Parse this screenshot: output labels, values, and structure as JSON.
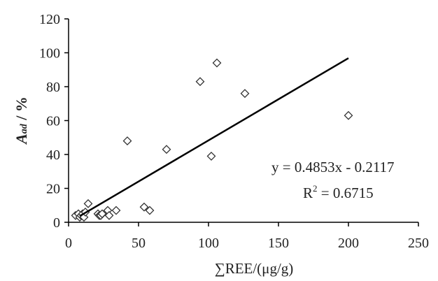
{
  "chart_data": {
    "type": "scatter",
    "xlabel": "∑REE/(μg/g)",
    "ylabel": {
      "main": "A",
      "sub": "ad",
      "unit": " / %"
    },
    "xlim": [
      0,
      250
    ],
    "ylim": [
      0,
      120
    ],
    "xticks": [
      0,
      50,
      100,
      150,
      200,
      250
    ],
    "yticks": [
      0,
      20,
      40,
      60,
      80,
      100,
      120
    ],
    "grid": false,
    "marker": "open-diamond",
    "series": [
      {
        "points": [
          [
            5,
            4
          ],
          [
            7,
            5
          ],
          [
            8,
            3
          ],
          [
            9,
            4
          ],
          [
            10,
            5
          ],
          [
            11,
            3
          ],
          [
            12,
            6
          ],
          [
            14,
            11
          ],
          [
            21,
            5
          ],
          [
            22,
            4
          ],
          [
            23,
            4
          ],
          [
            24,
            5
          ],
          [
            28,
            7
          ],
          [
            29,
            4
          ],
          [
            34,
            7
          ],
          [
            42,
            48
          ],
          [
            54,
            9
          ],
          [
            58,
            7
          ],
          [
            70,
            43
          ],
          [
            94,
            83
          ],
          [
            102,
            39
          ],
          [
            106,
            94
          ],
          [
            126,
            76
          ],
          [
            200,
            63
          ]
        ]
      }
    ],
    "trendline": {
      "slope": 0.4853,
      "intercept": -0.2117,
      "x_range": [
        8,
        200
      ],
      "equation": "y = 0.4853x - 0.2117",
      "r2_label": "R",
      "r2_sup": "2",
      "r2_value": " = 0.6715"
    }
  }
}
